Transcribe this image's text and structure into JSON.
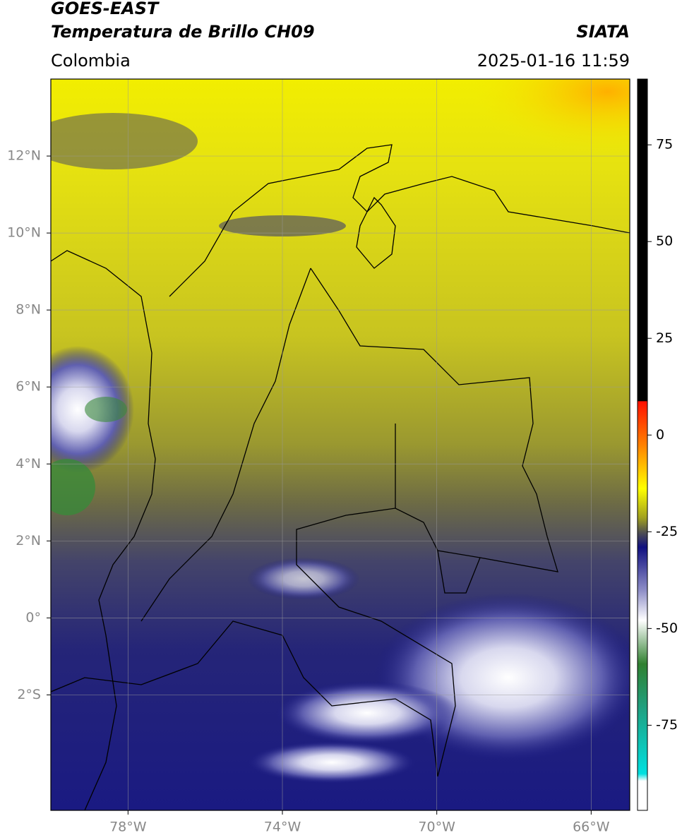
{
  "header": {
    "title": "GOES-EAST",
    "subtitle": "Temperatura de Brillo CH09",
    "source": "SIATA",
    "region": "Colombia",
    "datetime": "2025-01-16 11:59"
  },
  "map": {
    "xlim": [
      -80,
      -65
    ],
    "ylim": [
      -5,
      14
    ],
    "xticks": [
      {
        "value": -78,
        "label": "78°W"
      },
      {
        "value": -74,
        "label": "74°W"
      },
      {
        "value": -70,
        "label": "70°W"
      },
      {
        "value": -66,
        "label": "66°W"
      }
    ],
    "yticks": [
      {
        "value": 12,
        "label": "12°N"
      },
      {
        "value": 10,
        "label": "10°N"
      },
      {
        "value": 8,
        "label": "8°N"
      },
      {
        "value": 6,
        "label": "6°N"
      },
      {
        "value": 4,
        "label": "4°N"
      },
      {
        "value": 2,
        "label": "2°N"
      },
      {
        "value": 0,
        "label": "0°"
      },
      {
        "value": -2,
        "label": "2°S"
      }
    ],
    "grid": true
  },
  "colorbar": {
    "ylim": [
      -97,
      92
    ],
    "yticks": [
      75,
      50,
      25,
      0,
      -25,
      -50,
      -75
    ]
  }
}
